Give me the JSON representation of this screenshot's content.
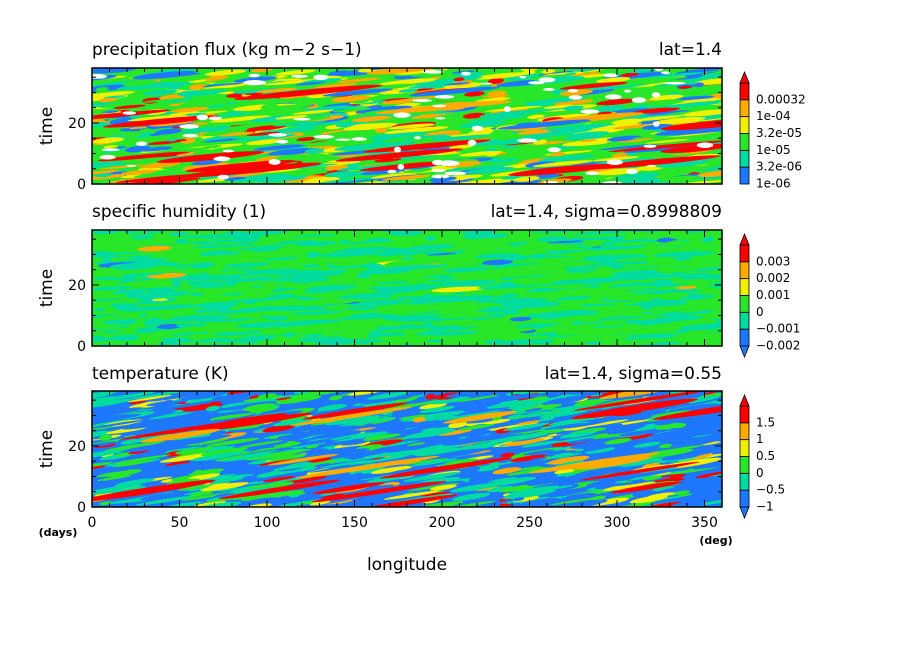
{
  "chart_data": {
    "type": "heatmap",
    "x_axis": {
      "label": "longitude",
      "unit": "(deg)",
      "range": [
        0,
        360
      ],
      "ticks": [
        0,
        50,
        100,
        150,
        200,
        250,
        300,
        350
      ],
      "tick_labels": [
        "0",
        "50",
        "100",
        "150",
        "200",
        "250",
        "300",
        "350"
      ]
    },
    "y_axis_unit": "(days)",
    "palette": [
      "#1e78ff",
      "#00dca0",
      "#28e628",
      "#f0f000",
      "#ffaa00",
      "#ff0000"
    ],
    "panels": [
      {
        "title": "precipitation flux (kg m−2 s−1)",
        "subtitle": "lat=1.4",
        "ylabel": "time",
        "ylim": [
          0,
          38
        ],
        "yticks": [
          "0",
          "20"
        ],
        "colorbar": [
          "1e-06",
          "3.2e-06",
          "1e-05",
          "3.2e-05",
          "1e-04",
          "0.00032"
        ],
        "extend": "max",
        "weights": [
          0.12,
          0.22,
          0.26,
          0.2,
          0.13,
          0.07
        ],
        "white_gaps": true,
        "bands": 0.55,
        "seed": 11
      },
      {
        "title": "specific humidity (1)",
        "subtitle": "lat=1.4, sigma=0.8998809",
        "ylabel": "time",
        "ylim": [
          0,
          38
        ],
        "yticks": [
          "0",
          "20"
        ],
        "colorbar": [
          "−0.002",
          "−0.001",
          "0",
          "0.001",
          "0.002",
          "0.003"
        ],
        "extend": "both",
        "weights": [
          0.02,
          0.48,
          0.49,
          0.006,
          0.004,
          0
        ],
        "white_gaps": false,
        "bands": 0.3,
        "seed": 23
      },
      {
        "title": "temperature (K)",
        "subtitle": "lat=1.4, sigma=0.55",
        "ylabel": "time",
        "ylim": [
          0,
          38
        ],
        "yticks": [
          "0",
          "20"
        ],
        "colorbar": [
          "−1",
          "−0.5",
          "0",
          "0.5",
          "1",
          "1.5"
        ],
        "extend": "both",
        "weights": [
          0.33,
          0.3,
          0.18,
          0.09,
          0.05,
          0.05
        ],
        "white_gaps": false,
        "bands": 0.9,
        "seed": 37
      }
    ]
  }
}
